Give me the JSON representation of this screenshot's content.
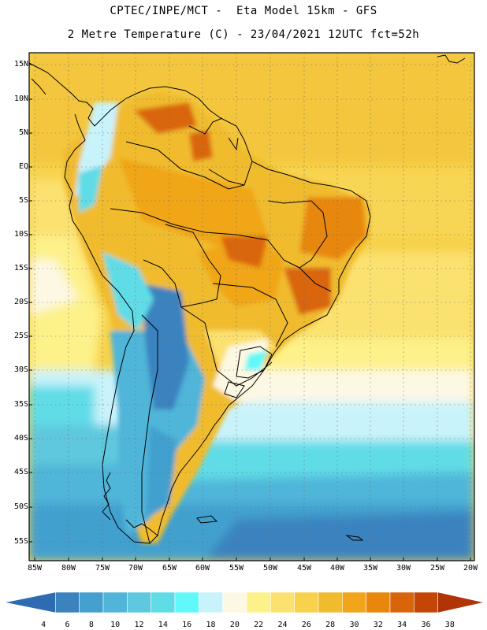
{
  "title": {
    "line1": "CPTEC/INPE/MCT -  Eta Model 15km - GFS",
    "line2": "2 Metre Temperature (C) - 23/04/2021 12UTC fct=52h"
  },
  "map": {
    "lat_labels": [
      "15N",
      "10N",
      "5N",
      "EQ",
      "5S",
      "10S",
      "15S",
      "20S",
      "25S",
      "30S",
      "35S",
      "40S",
      "45S",
      "50S",
      "55S"
    ],
    "lon_labels": [
      "85W",
      "80W",
      "75W",
      "70W",
      "65W",
      "60W",
      "55W",
      "50W",
      "45W",
      "40W",
      "35W",
      "30W",
      "25W",
      "20W"
    ]
  },
  "colorbar": {
    "labels": [
      "4",
      "6",
      "8",
      "10",
      "12",
      "14",
      "16",
      "18",
      "20",
      "22",
      "24",
      "26",
      "28",
      "30",
      "32",
      "34",
      "36",
      "38"
    ],
    "colors": [
      "#2e6bb0",
      "#3a83bf",
      "#43a0cf",
      "#50b5d9",
      "#5ec8de",
      "#60dce7",
      "#60f8f8",
      "#c9f3fb",
      "#fdf8e4",
      "#fdf18a",
      "#fbe170",
      "#f7d24a",
      "#f0bc2e",
      "#f0a618",
      "#e8870c",
      "#d9650a",
      "#c44607",
      "#b03407"
    ]
  }
}
